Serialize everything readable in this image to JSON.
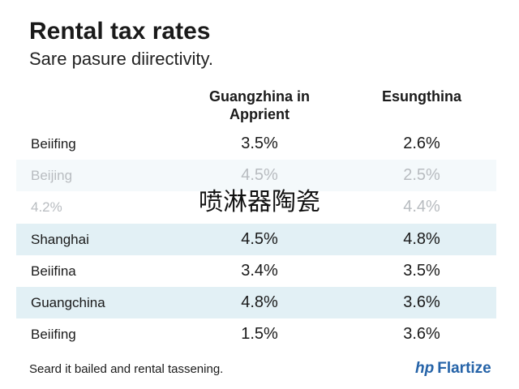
{
  "header": {
    "title": "Rental tax rates",
    "subtitle": "Sare pasure diirectivity."
  },
  "table": {
    "columns": [
      "Guangzhina in Apprient",
      "Esungthina"
    ],
    "rows": [
      {
        "label": "Beiifing",
        "col1": "3.5%",
        "col2": "2.6%"
      },
      {
        "label": "Beijing",
        "col1": "4.5%",
        "col2": "2.5%"
      },
      {
        "label": "4.2%",
        "col2": "4.4%"
      },
      {
        "label": "Shanghai",
        "col1": "4.5%",
        "col2": "4.8%"
      },
      {
        "label": "Beiifina",
        "col1": "3.4%",
        "col2": "3.5%"
      },
      {
        "label": "Guangchina",
        "col1": "4.8%",
        "col2": "3.6%"
      },
      {
        "label": "Beiifing",
        "col1": "1.5%",
        "col2": "3.6%"
      }
    ]
  },
  "overlay": "喷淋器陶瓷",
  "footer": {
    "note": "Seard it bailed and rental tassening.",
    "logo_mark": "hp",
    "logo_text": "Flartize"
  }
}
